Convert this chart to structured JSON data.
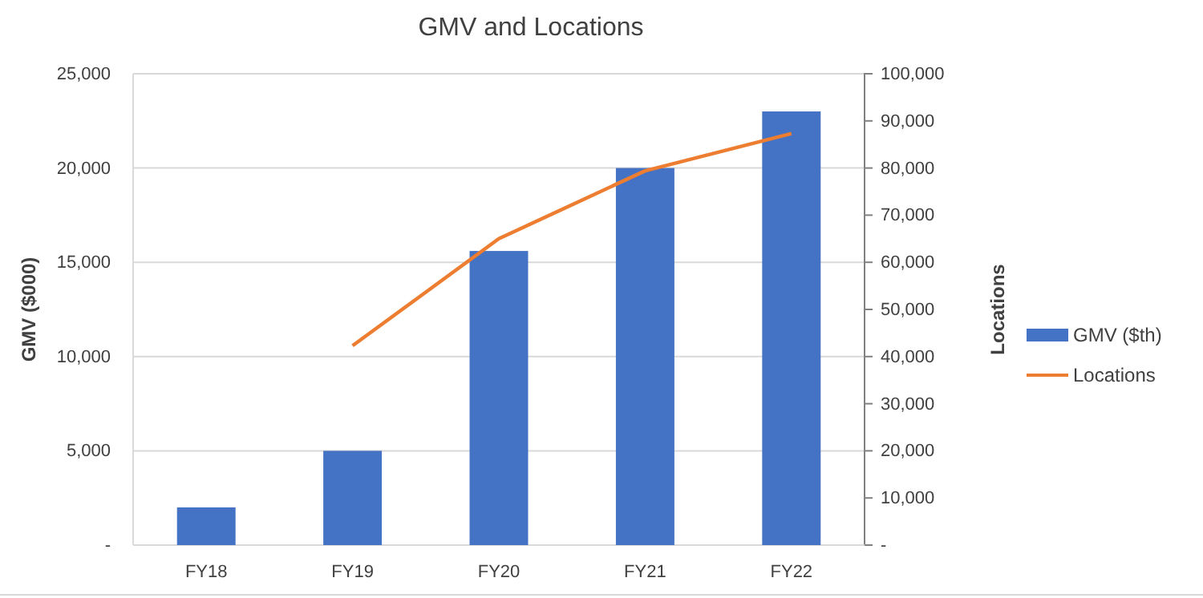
{
  "chart_data": {
    "type": "bar",
    "title": "GMV and Locations",
    "ylabel": "GMV ($000)",
    "y2label": "Locations",
    "categories": [
      "FY18",
      "FY19",
      "FY20",
      "FY21",
      "FY22"
    ],
    "series": [
      {
        "name": "GMV ($th)",
        "color": "#4472c4",
        "values": [
          2000,
          5000,
          15600,
          20000,
          23000
        ]
      },
      {
        "name": "Locations",
        "type": "line",
        "axis": "y2",
        "color": "#ed7d31",
        "values": [
          null,
          42300,
          65000,
          79400,
          87300
        ]
      }
    ],
    "ylim": [
      0,
      25000
    ],
    "yticks": [
      {
        "value": 0,
        "label": "-"
      },
      {
        "value": 5000,
        "label": "5,000"
      },
      {
        "value": 10000,
        "label": "10,000"
      },
      {
        "value": 15000,
        "label": "15,000"
      },
      {
        "value": 20000,
        "label": "20,000"
      },
      {
        "value": 25000,
        "label": "25,000"
      }
    ],
    "y2lim": [
      0,
      100000
    ],
    "y2ticks": [
      {
        "value": 0,
        "label": "-"
      },
      {
        "value": 10000,
        "label": "10,000"
      },
      {
        "value": 20000,
        "label": "20,000"
      },
      {
        "value": 30000,
        "label": "30,000"
      },
      {
        "value": 40000,
        "label": "40,000"
      },
      {
        "value": 50000,
        "label": "50,000"
      },
      {
        "value": 60000,
        "label": "60,000"
      },
      {
        "value": 70000,
        "label": "70,000"
      },
      {
        "value": 80000,
        "label": "80,000"
      },
      {
        "value": 90000,
        "label": "90,000"
      },
      {
        "value": 100000,
        "label": "100,000"
      }
    ],
    "grid": "y",
    "legend": "right"
  }
}
